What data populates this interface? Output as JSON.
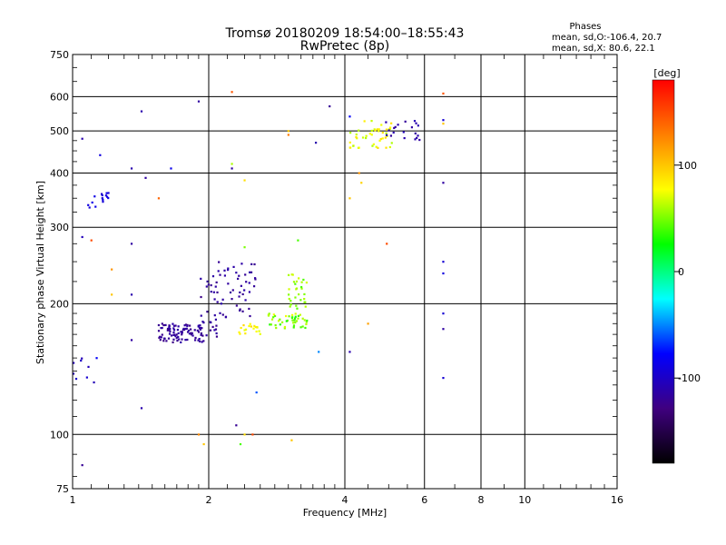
{
  "chart_data": {
    "type": "scatter",
    "title": "Tromsø 20180209 18:54:00–18:55:43",
    "subtitle": "RwPretec (8p)",
    "xlabel": "Frequency [MHz]",
    "ylabel": "Stationary phase Virtual Height [km]",
    "x_scale": "log",
    "y_scale": "log",
    "xlim": [
      1,
      16
    ],
    "ylim": [
      75,
      750
    ],
    "x_ticks": [
      1,
      2,
      4,
      6,
      8,
      10,
      16
    ],
    "y_ticks": [
      75,
      100,
      200,
      300,
      400,
      500,
      600,
      750
    ],
    "grid": true,
    "stats": {
      "heading": "Phases",
      "o_line": "mean, sd,O:-106.4, 20.7",
      "x_line": "mean, sd,X:  80.6, 22.1"
    },
    "colorbar": {
      "label": "[deg]",
      "range": [
        -180,
        180
      ],
      "ticks": [
        100,
        0,
        -100
      ],
      "colors": [
        "#000000",
        "#3f007f",
        "#0000ff",
        "#00ffff",
        "#00ff00",
        "#ffff00",
        "#ff7f00",
        "#ff0000"
      ]
    },
    "clusters": [
      {
        "f": [
          1.55,
          1.95
        ],
        "h": [
          163,
          180
        ],
        "phase": [
          -125,
          -112
        ],
        "n": 95
      },
      {
        "f": [
          1.9,
          2.1
        ],
        "h": [
          168,
          235
        ],
        "phase": [
          -125,
          -110
        ],
        "n": 30
      },
      {
        "f": [
          2.1,
          2.55
        ],
        "h": [
          185,
          250
        ],
        "phase": [
          -122,
          -110
        ],
        "n": 45
      },
      {
        "f": [
          2.3,
          2.6
        ],
        "h": [
          170,
          180
        ],
        "phase": [
          70,
          95
        ],
        "n": 18
      },
      {
        "f": [
          2.7,
          3.3
        ],
        "h": [
          175,
          190
        ],
        "phase": [
          30,
          75
        ],
        "n": 45
      },
      {
        "f": [
          3.0,
          3.3
        ],
        "h": [
          195,
          235
        ],
        "phase": [
          40,
          70
        ],
        "n": 30
      },
      {
        "f": [
          4.1,
          5.1
        ],
        "h": [
          455,
          530
        ],
        "phase": [
          60,
          95
        ],
        "n": 45
      },
      {
        "f": [
          4.9,
          5.9
        ],
        "h": [
          475,
          530
        ],
        "phase": [
          -118,
          -105
        ],
        "n": 20
      },
      {
        "f": [
          1.08,
          1.2
        ],
        "h": [
          330,
          365
        ],
        "phase": [
          -95,
          -85
        ],
        "n": 14
      },
      {
        "f": [
          1.0,
          1.12
        ],
        "h": [
          130,
          150
        ],
        "phase": [
          -110,
          -95
        ],
        "n": 8
      }
    ],
    "points": [
      {
        "f": 1.05,
        "h": 480,
        "phase": -110
      },
      {
        "f": 1.05,
        "h": 285,
        "phase": -105
      },
      {
        "f": 1.1,
        "h": 280,
        "phase": 150
      },
      {
        "f": 1.15,
        "h": 440,
        "phase": -90
      },
      {
        "f": 1.2,
        "h": 360,
        "phase": -95
      },
      {
        "f": 1.22,
        "h": 240,
        "phase": 120
      },
      {
        "f": 1.22,
        "h": 210,
        "phase": 100
      },
      {
        "f": 1.13,
        "h": 150,
        "phase": -80
      },
      {
        "f": 1.35,
        "h": 410,
        "phase": -110
      },
      {
        "f": 1.35,
        "h": 275,
        "phase": -115
      },
      {
        "f": 1.35,
        "h": 210,
        "phase": -110
      },
      {
        "f": 1.35,
        "h": 165,
        "phase": -115
      },
      {
        "f": 1.42,
        "h": 555,
        "phase": -110
      },
      {
        "f": 1.45,
        "h": 390,
        "phase": -115
      },
      {
        "f": 1.42,
        "h": 115,
        "phase": -110
      },
      {
        "f": 1.55,
        "h": 350,
        "phase": 140
      },
      {
        "f": 1.65,
        "h": 410,
        "phase": -85
      },
      {
        "f": 1.9,
        "h": 585,
        "phase": -115
      },
      {
        "f": 1.9,
        "h": 100,
        "phase": 125
      },
      {
        "f": 1.95,
        "h": 95,
        "phase": 100
      },
      {
        "f": 2.25,
        "h": 615,
        "phase": 145
      },
      {
        "f": 2.25,
        "h": 420,
        "phase": 60
      },
      {
        "f": 2.25,
        "h": 410,
        "phase": -115
      },
      {
        "f": 2.4,
        "h": 385,
        "phase": 90
      },
      {
        "f": 2.4,
        "h": 270,
        "phase": 50
      },
      {
        "f": 2.3,
        "h": 105,
        "phase": -120
      },
      {
        "f": 2.4,
        "h": 100,
        "phase": 90
      },
      {
        "f": 2.5,
        "h": 100,
        "phase": 150
      },
      {
        "f": 2.55,
        "h": 125,
        "phase": -60
      },
      {
        "f": 2.35,
        "h": 95,
        "phase": 40
      },
      {
        "f": 3.0,
        "h": 490,
        "phase": 130
      },
      {
        "f": 3.0,
        "h": 500,
        "phase": 100
      },
      {
        "f": 3.05,
        "h": 97,
        "phase": 100
      },
      {
        "f": 3.15,
        "h": 280,
        "phase": 40
      },
      {
        "f": 3.45,
        "h": 470,
        "phase": -110
      },
      {
        "f": 3.5,
        "h": 155,
        "phase": -50
      },
      {
        "f": 3.7,
        "h": 570,
        "phase": -120
      },
      {
        "f": 4.1,
        "h": 540,
        "phase": -80
      },
      {
        "f": 4.1,
        "h": 350,
        "phase": 100
      },
      {
        "f": 4.1,
        "h": 155,
        "phase": -110
      },
      {
        "f": 4.3,
        "h": 400,
        "phase": 120
      },
      {
        "f": 4.35,
        "h": 380,
        "phase": 95
      },
      {
        "f": 4.5,
        "h": 180,
        "phase": 115
      },
      {
        "f": 4.95,
        "h": 275,
        "phase": 150
      },
      {
        "f": 6.6,
        "h": 610,
        "phase": 145
      },
      {
        "f": 6.6,
        "h": 530,
        "phase": -95
      },
      {
        "f": 6.6,
        "h": 520,
        "phase": 100
      },
      {
        "f": 6.6,
        "h": 380,
        "phase": -115
      },
      {
        "f": 6.6,
        "h": 250,
        "phase": -95
      },
      {
        "f": 6.6,
        "h": 235,
        "phase": -90
      },
      {
        "f": 6.6,
        "h": 190,
        "phase": -95
      },
      {
        "f": 6.6,
        "h": 175,
        "phase": -115
      },
      {
        "f": 6.6,
        "h": 135,
        "phase": -95
      },
      {
        "f": 1.05,
        "h": 85,
        "phase": -120
      }
    ]
  }
}
